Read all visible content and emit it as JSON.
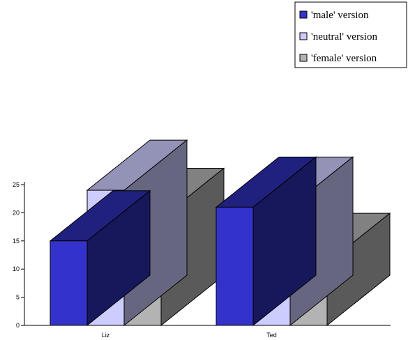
{
  "chart_data": {
    "type": "bar",
    "style": "3d-clustered-column",
    "categories": [
      "Liz",
      "Ted"
    ],
    "series": [
      {
        "name": "'male' version",
        "values": [
          15,
          21
        ],
        "color": "#3333cc"
      },
      {
        "name": "'neutral' version",
        "values": [
          24,
          21
        ],
        "color": "#ccccff"
      },
      {
        "name": "'female' version",
        "values": [
          19,
          11
        ],
        "color": "#b3b3b3"
      }
    ],
    "y_ticks": [
      "0",
      "5",
      "10",
      "15",
      "20",
      "25"
    ],
    "ylim": [
      0,
      25
    ],
    "legend_position": "top-right",
    "grid": false
  }
}
